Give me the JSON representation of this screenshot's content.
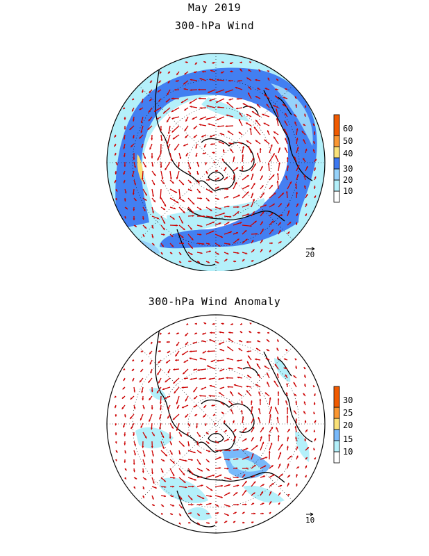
{
  "figure": {
    "title": "May 2019",
    "top_panel_title": "300-hPa Wind",
    "bottom_panel_title": "300-hPa Wind Anomaly"
  },
  "top_panel": {
    "colorbar": {
      "levels": [
        "10",
        "20",
        "30",
        "40",
        "50",
        "60"
      ],
      "colors": [
        "#ffffff",
        "#b4f0fa",
        "#96d2fa",
        "#3c78f0",
        "#fae178",
        "#fa9632",
        "#f05a00"
      ]
    },
    "reference_vector": {
      "label": "20"
    }
  },
  "bottom_panel": {
    "colorbar": {
      "levels": [
        "10",
        "15",
        "20",
        "25",
        "30"
      ],
      "colors": [
        "#ffffff",
        "#b4f0fa",
        "#78b9fa",
        "#fae178",
        "#fa9632",
        "#f05a00"
      ]
    },
    "reference_vector": {
      "label": "10"
    }
  },
  "style": {
    "vector_color": "#cc0000",
    "coast_color": "#000000"
  }
}
